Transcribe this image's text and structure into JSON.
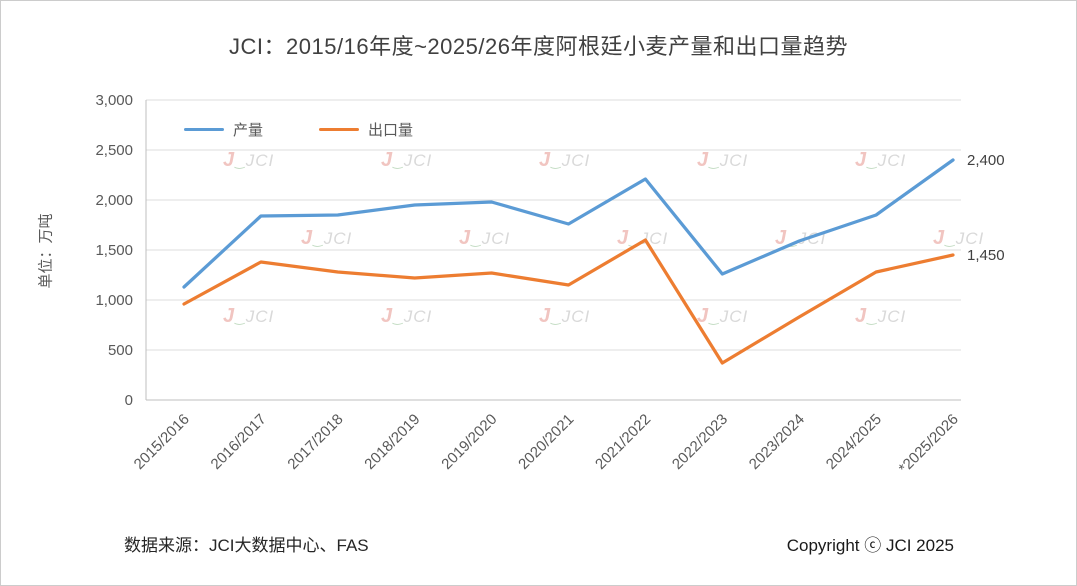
{
  "page": {
    "title": "JCI：2015/16年度~2025/26年度阿根廷小麦产量和出口量趋势",
    "footer_left": "数据来源：JCI大数据中心、FAS",
    "footer_right": "Copyright ⓒ JCI 2025",
    "watermark_text": "JCI"
  },
  "chart_data": {
    "type": "line",
    "title": "JCI：2015/16年度~2025/26年度阿根廷小麦产量和出口量趋势",
    "xlabel": "",
    "ylabel": "单位：万吨",
    "ylim": [
      0,
      3000
    ],
    "ytick_step": 500,
    "grid": true,
    "legend_position": "top-left-inside",
    "categories": [
      "2015/2016",
      "2016/2017",
      "2017/2018",
      "2018/2019",
      "2019/2020",
      "2020/2021",
      "2021/2022",
      "2022/2023",
      "2023/2024",
      "2024/2025",
      "*2025/2026"
    ],
    "series": [
      {
        "id": "production",
        "name": "产量",
        "color": "#5B9BD5",
        "values": [
          1130,
          1840,
          1850,
          1950,
          1980,
          1760,
          2210,
          1260,
          1590,
          1850,
          2400
        ],
        "end_label": "2,400"
      },
      {
        "id": "exports",
        "name": "出口量",
        "color": "#ED7D31",
        "values": [
          960,
          1380,
          1280,
          1220,
          1270,
          1150,
          1600,
          370,
          830,
          1280,
          1450
        ],
        "end_label": "1,450"
      }
    ]
  }
}
